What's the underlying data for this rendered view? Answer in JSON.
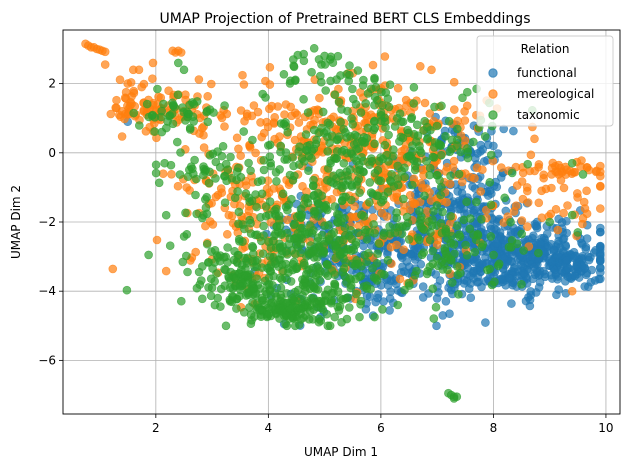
{
  "chart_data": {
    "type": "scatter",
    "title": "UMAP Projection of Pretrained BERT CLS Embeddings",
    "xlabel": "UMAP Dim 1",
    "ylabel": "UMAP Dim 2",
    "xlim": [
      0.35,
      10.25
    ],
    "ylim": [
      -7.55,
      3.55
    ],
    "xticks": [
      2,
      4,
      6,
      8,
      10
    ],
    "yticks": [
      -6,
      -4,
      -2,
      0,
      2
    ],
    "grid": true,
    "legend": {
      "title": "Relation",
      "placement": "upper-right"
    },
    "marker_alpha": 0.7,
    "series": [
      {
        "name": "functional",
        "color": "#1f77b4",
        "clusters": [
          {
            "cx": 8.3,
            "cy": -3.0,
            "sx": 0.8,
            "sy": 0.55,
            "n": 420
          },
          {
            "cx": 7.2,
            "cy": -1.6,
            "sx": 0.6,
            "sy": 0.9,
            "n": 220
          },
          {
            "cx": 6.0,
            "cy": -3.3,
            "sx": 0.8,
            "sy": 0.7,
            "n": 220
          },
          {
            "cx": 9.3,
            "cy": -3.1,
            "sx": 0.35,
            "sy": 0.35,
            "n": 80
          },
          {
            "cx": 5.2,
            "cy": -2.3,
            "sx": 0.6,
            "sy": 0.7,
            "n": 90
          },
          {
            "cx": 7.5,
            "cy": 0.3,
            "sx": 0.4,
            "sy": 0.3,
            "n": 40
          }
        ],
        "points": [
          [
            1.5,
            0.9
          ],
          [
            7.3,
            0.8
          ],
          [
            8.0,
            0.2
          ],
          [
            9.7,
            -3.1
          ],
          [
            7.1,
            -4.7
          ]
        ]
      },
      {
        "name": "mereological",
        "color": "#ff7f0e",
        "clusters": [
          {
            "cx": 1.7,
            "cy": 1.3,
            "sx": 0.25,
            "sy": 0.4,
            "n": 45
          },
          {
            "cx": 2.4,
            "cy": 1.2,
            "sx": 0.35,
            "sy": 0.3,
            "n": 45
          },
          {
            "cx": 5.5,
            "cy": 0.8,
            "sx": 1.2,
            "sy": 0.7,
            "n": 200
          },
          {
            "cx": 4.8,
            "cy": -1.8,
            "sx": 1.3,
            "sy": 1.2,
            "n": 220
          },
          {
            "cx": 6.5,
            "cy": -0.9,
            "sx": 0.9,
            "sy": 1.0,
            "n": 150
          },
          {
            "cx": 9.0,
            "cy": -1.4,
            "sx": 0.6,
            "sy": 0.6,
            "n": 40
          },
          {
            "cx": 9.3,
            "cy": -0.5,
            "sx": 0.4,
            "sy": 0.12,
            "n": 30
          },
          {
            "cx": 3.4,
            "cy": -1.5,
            "sx": 0.4,
            "sy": 0.9,
            "n": 40
          }
        ],
        "points": [
          [
            0.8,
            3.1
          ],
          [
            0.85,
            3.05
          ],
          [
            0.9,
            3.05
          ],
          [
            0.95,
            3.0
          ],
          [
            1.0,
            2.98
          ],
          [
            1.05,
            2.95
          ],
          [
            1.1,
            2.92
          ],
          [
            0.75,
            3.15
          ],
          [
            1.1,
            2.55
          ],
          [
            2.3,
            2.95
          ],
          [
            2.35,
            2.9
          ],
          [
            2.4,
            2.95
          ],
          [
            2.45,
            2.9
          ],
          [
            1.5,
            2.0
          ],
          [
            1.6,
            2.4
          ],
          [
            1.7,
            2.4
          ],
          [
            1.95,
            2.6
          ],
          [
            1.3,
            1.3
          ],
          [
            1.4,
            1.2
          ],
          [
            1.35,
            1.1
          ],
          [
            8.6,
            -1.0
          ],
          [
            9.7,
            -0.5
          ],
          [
            9.55,
            -0.4
          ],
          [
            7.4,
            -3.3
          ],
          [
            9.4,
            -4.0
          ],
          [
            6.9,
            2.4
          ],
          [
            6.7,
            2.5
          ],
          [
            5.5,
            2.3
          ]
        ]
      },
      {
        "name": "taxonomic",
        "color": "#2ca02c",
        "clusters": [
          {
            "cx": 4.6,
            "cy": -3.2,
            "sx": 0.9,
            "sy": 0.8,
            "n": 300
          },
          {
            "cx": 5.2,
            "cy": -1.2,
            "sx": 1.0,
            "sy": 1.0,
            "n": 230
          },
          {
            "cx": 6.2,
            "cy": 0.4,
            "sx": 1.0,
            "sy": 0.8,
            "n": 160
          },
          {
            "cx": 3.5,
            "cy": -3.8,
            "sx": 0.4,
            "sy": 0.4,
            "n": 70
          },
          {
            "cx": 4.5,
            "cy": -4.3,
            "sx": 0.6,
            "sy": 0.3,
            "n": 90
          },
          {
            "cx": 2.4,
            "cy": 1.2,
            "sx": 0.35,
            "sy": 0.3,
            "n": 45
          },
          {
            "cx": 3.0,
            "cy": -0.5,
            "sx": 0.4,
            "sy": 0.25,
            "n": 40
          },
          {
            "cx": 7.4,
            "cy": -2.5,
            "sx": 0.6,
            "sy": 0.7,
            "n": 90
          },
          {
            "cx": 5.1,
            "cy": 2.2,
            "sx": 0.5,
            "sy": 0.35,
            "n": 40
          },
          {
            "cx": 4.2,
            "cy": -4.6,
            "sx": 0.3,
            "sy": 0.1,
            "n": 50
          }
        ],
        "points": [
          [
            7.2,
            -6.95
          ],
          [
            7.25,
            -7.0
          ],
          [
            7.3,
            -7.05
          ],
          [
            7.3,
            -7.1
          ],
          [
            7.35,
            -7.05
          ],
          [
            2.4,
            2.6
          ],
          [
            2.5,
            2.4
          ],
          [
            4.9,
            2.7
          ],
          [
            5.0,
            2.8
          ],
          [
            5.1,
            2.7
          ],
          [
            3.9,
            1.7
          ],
          [
            3.95,
            1.6
          ],
          [
            8.2,
            -1.3
          ],
          [
            9.4,
            -0.3
          ],
          [
            9.0,
            -2.0
          ],
          [
            9.4,
            -1.8
          ],
          [
            9.5,
            -2.3
          ],
          [
            8.5,
            -3.8
          ],
          [
            8.8,
            -2.9
          ],
          [
            5.1,
            -5.0
          ],
          [
            5.3,
            -4.9
          ],
          [
            4.9,
            -4.8
          ],
          [
            3.1,
            -4.2
          ],
          [
            3.0,
            -3.9
          ],
          [
            6.3,
            -4.4
          ]
        ]
      }
    ]
  }
}
